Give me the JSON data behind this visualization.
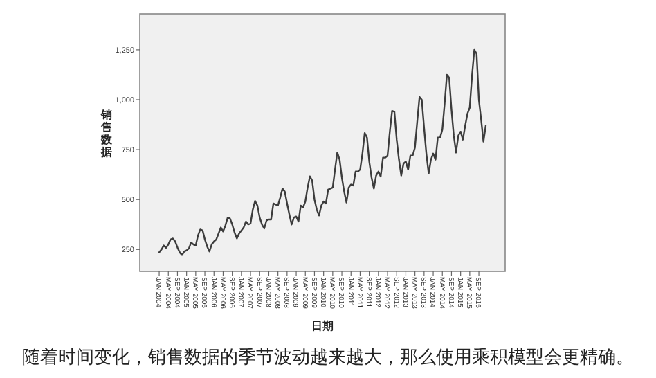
{
  "chart_data": {
    "type": "line",
    "xlabel": "日期",
    "ylabel": "销售数据",
    "annotations": [
      "随着时间变化，销售数据的季节波动越来越大，那么使用乘积模型会更精确。"
    ],
    "categories": [
      "JAN 2004",
      null,
      null,
      null,
      "MAY 2004",
      null,
      null,
      null,
      "SEP 2004",
      null,
      null,
      null,
      "JAN 2005",
      null,
      null,
      null,
      "MAY 2005",
      null,
      null,
      null,
      "SEP 2005",
      null,
      null,
      null,
      "JAN 2006",
      null,
      null,
      null,
      "MAY 2006",
      null,
      null,
      null,
      "SEP 2006",
      null,
      null,
      null,
      "JAN 2007",
      null,
      null,
      null,
      "MAY 2007",
      null,
      null,
      null,
      "SEP 2007",
      null,
      null,
      null,
      "JAN 2008",
      null,
      null,
      null,
      "MAY 2008",
      null,
      null,
      null,
      "SEP 2008",
      null,
      null,
      null,
      "JAN 2009",
      null,
      null,
      null,
      "MAY 2009",
      null,
      null,
      null,
      "SEP 2009",
      null,
      null,
      null,
      "JAN 2010",
      null,
      null,
      null,
      "MAY 2010",
      null,
      null,
      null,
      "SEP 2010",
      null,
      null,
      null,
      "JAN 2011",
      null,
      null,
      null,
      "MAY 2011",
      null,
      null,
      null,
      "SEP 2011",
      null,
      null,
      null,
      "JAN 2012",
      null,
      null,
      null,
      "MAY 2012",
      null,
      null,
      null,
      "SEP 2012",
      null,
      null,
      null,
      "JAN 2013",
      null,
      null,
      null,
      "MAY 2013",
      null,
      null,
      null,
      "SEP 2013",
      null,
      null,
      null,
      "JAN 2014",
      null,
      null,
      null,
      "MAY 2014",
      null,
      null,
      null,
      "SEP 2014",
      null,
      null,
      null,
      "JAN 2015",
      null,
      null,
      null,
      "MAY 2015",
      null,
      null,
      null,
      "SEP 2015",
      null,
      null,
      null
    ],
    "series": [
      {
        "color": "#3c3c3c",
        "values": [
          235,
          250,
          270,
          258,
          275,
          300,
          305,
          290,
          260,
          235,
          222,
          240,
          245,
          255,
          285,
          275,
          270,
          320,
          350,
          345,
          300,
          265,
          240,
          275,
          290,
          300,
          330,
          360,
          340,
          370,
          410,
          405,
          375,
          335,
          305,
          330,
          345,
          360,
          390,
          375,
          380,
          450,
          493,
          470,
          410,
          375,
          355,
          395,
          400,
          400,
          480,
          475,
          470,
          510,
          555,
          540,
          480,
          425,
          375,
          410,
          415,
          390,
          470,
          460,
          490,
          560,
          616,
          595,
          500,
          450,
          420,
          470,
          490,
          480,
          550,
          555,
          560,
          650,
          736,
          700,
          610,
          540,
          485,
          560,
          575,
          570,
          640,
          640,
          650,
          730,
          833,
          810,
          690,
          610,
          555,
          620,
          640,
          615,
          710,
          710,
          720,
          840,
          944,
          940,
          800,
          700,
          620,
          680,
          690,
          650,
          720,
          720,
          760,
          890,
          1014,
          1000,
          860,
          730,
          630,
          700,
          730,
          700,
          810,
          810,
          850,
          980,
          1125,
          1110,
          950,
          820,
          735,
          820,
          840,
          800,
          870,
          930,
          960,
          1120,
          1250,
          1230,
          1000,
          900,
          790,
          870
        ]
      }
    ],
    "ylim": [
      140,
      1430
    ],
    "yticks": [
      {
        "value": 250,
        "label": "250"
      },
      {
        "value": 500,
        "label": "500"
      },
      {
        "value": 750,
        "label": "750"
      },
      {
        "value": 1000,
        "label": "1,000"
      },
      {
        "value": 1250,
        "label": "1,250"
      }
    ],
    "grid": false,
    "marker": "none",
    "line_style": "solid"
  }
}
